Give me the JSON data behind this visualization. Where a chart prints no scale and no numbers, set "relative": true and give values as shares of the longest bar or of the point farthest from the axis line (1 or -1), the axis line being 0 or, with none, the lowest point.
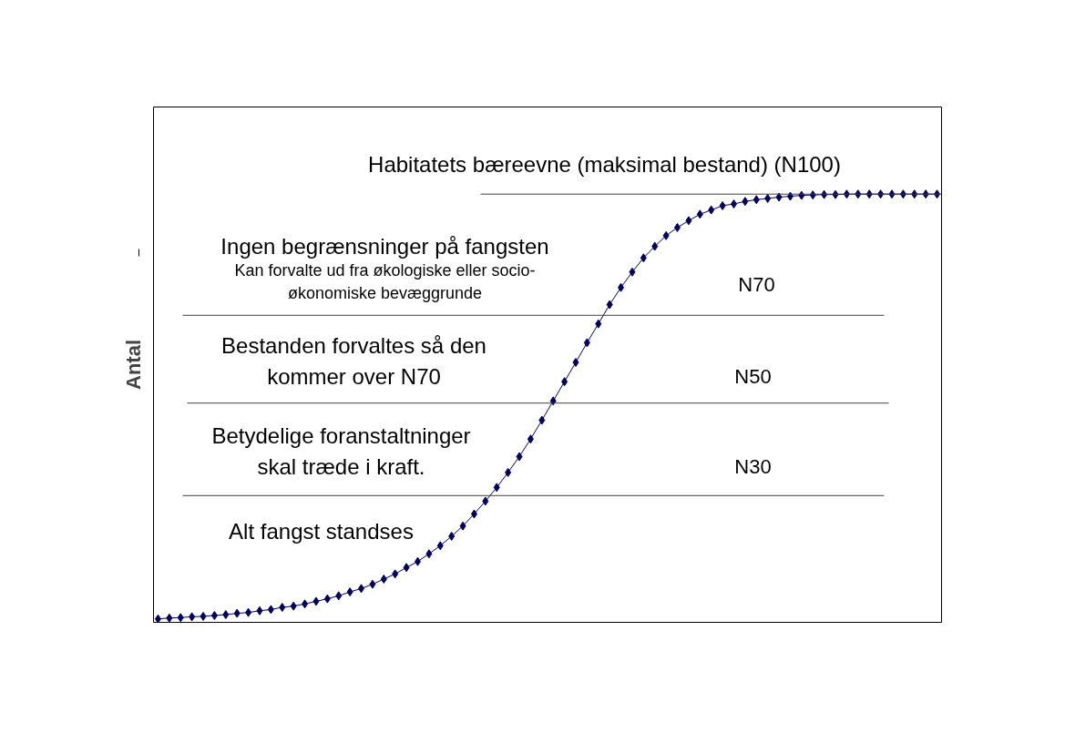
{
  "chart_data": {
    "type": "line",
    "relative": true,
    "ylabel": "Antal",
    "marker": "diamond",
    "line_style": "solid",
    "color": "#000066",
    "categories": [
      null,
      null,
      null,
      null,
      null,
      null,
      null,
      null,
      null,
      null,
      null,
      null,
      null,
      null,
      null,
      null,
      null,
      null,
      null,
      null,
      null,
      null,
      null,
      null,
      null,
      null,
      null,
      null,
      null,
      null,
      null,
      null,
      null,
      null,
      null,
      null,
      null,
      null,
      null,
      null,
      null,
      null,
      null,
      null,
      null,
      null,
      null,
      null,
      null,
      null,
      null,
      null,
      null,
      null,
      null,
      null,
      null,
      null,
      null,
      null,
      null,
      null,
      null,
      null,
      null,
      null,
      null,
      null,
      null,
      null
    ],
    "values": [
      0.008,
      0.01,
      0.011,
      0.013,
      0.014,
      0.016,
      0.018,
      0.021,
      0.023,
      0.027,
      0.03,
      0.035,
      0.038,
      0.043,
      0.049,
      0.055,
      0.062,
      0.071,
      0.079,
      0.089,
      0.101,
      0.113,
      0.128,
      0.142,
      0.16,
      0.179,
      0.201,
      0.225,
      0.253,
      0.283,
      0.315,
      0.35,
      0.387,
      0.428,
      0.472,
      0.517,
      0.562,
      0.607,
      0.653,
      0.697,
      0.742,
      0.782,
      0.818,
      0.851,
      0.878,
      0.903,
      0.922,
      0.938,
      0.953,
      0.963,
      0.973,
      0.977,
      0.983,
      0.987,
      0.99,
      0.993,
      0.995,
      0.997,
      0.998,
      0.999,
      0.999,
      1,
      1,
      1,
      1,
      1,
      1,
      1,
      1,
      1
    ],
    "ref_lines": [
      {
        "axis": "y",
        "value": 1.0,
        "label": "Habitatets bæreevne (maksimal bestand) (N100)",
        "color": "#404040"
      },
      {
        "axis": "y",
        "value": 0.717,
        "label": "N70",
        "color": "#404040"
      },
      {
        "axis": "y",
        "value": 0.512,
        "label": "N50",
        "color": "#404040"
      },
      {
        "axis": "y",
        "value": 0.296,
        "label": "N30",
        "color": "#404040"
      }
    ],
    "annotations": [
      "Ingen begrænsninger på fangsten",
      "Kan forvalte ud fra økologiske eller socio-\nøkonomiske bevæggrunde",
      "Bestanden forvaltes så den\nkommer over N70",
      "Betydelige foranstaltninger\nskal træde i kraft.",
      "Alt fangst standses"
    ]
  }
}
